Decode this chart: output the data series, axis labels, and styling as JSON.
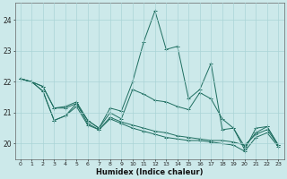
{
  "xlabel": "Humidex (Indice chaleur)",
  "xlim": [
    -0.5,
    23.5
  ],
  "ylim": [
    19.5,
    24.55
  ],
  "yticks": [
    20,
    21,
    22,
    23,
    24
  ],
  "xticks": [
    0,
    1,
    2,
    3,
    4,
    5,
    6,
    7,
    8,
    9,
    10,
    11,
    12,
    13,
    14,
    15,
    16,
    17,
    18,
    19,
    20,
    21,
    22,
    23
  ],
  "bg_color": "#cce9ea",
  "grid_color": "#aad4d6",
  "line_color": "#1e6e60",
  "line1": [
    22.1,
    22.0,
    21.85,
    21.15,
    21.2,
    21.35,
    20.75,
    20.5,
    21.15,
    21.05,
    22.0,
    23.3,
    24.3,
    23.05,
    23.15,
    21.45,
    21.75,
    22.6,
    20.45,
    20.5,
    19.8,
    20.5,
    20.55,
    19.95
  ],
  "line2": [
    22.1,
    22.0,
    21.85,
    21.15,
    21.15,
    21.3,
    20.75,
    20.5,
    21.0,
    20.8,
    21.75,
    21.6,
    21.4,
    21.35,
    21.2,
    21.1,
    21.65,
    21.45,
    20.8,
    20.5,
    19.9,
    20.35,
    20.55,
    19.95
  ],
  "line3": [
    22.1,
    22.0,
    21.7,
    20.75,
    20.9,
    21.3,
    20.65,
    20.45,
    20.85,
    20.7,
    20.6,
    20.5,
    20.4,
    20.35,
    20.25,
    20.2,
    20.15,
    20.1,
    20.1,
    20.05,
    19.95,
    20.3,
    20.45,
    19.95
  ],
  "line4": [
    22.1,
    22.0,
    21.7,
    20.75,
    20.9,
    21.2,
    20.6,
    20.45,
    20.8,
    20.65,
    20.5,
    20.4,
    20.3,
    20.2,
    20.15,
    20.1,
    20.1,
    20.05,
    20.0,
    19.95,
    19.75,
    20.2,
    20.35,
    19.9
  ]
}
